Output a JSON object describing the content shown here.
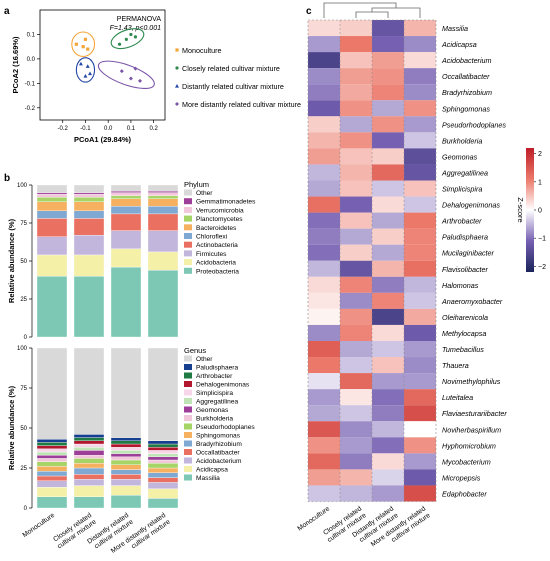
{
  "panel_labels": [
    "a",
    "b",
    "c"
  ],
  "chart_data": [
    {
      "panel": "a",
      "type": "scatter",
      "xlabel": "PCoA1 (29.84%)",
      "ylabel": "PCoA2 (16.69%)",
      "xlim": [
        -0.3,
        0.25
      ],
      "ylim": [
        -0.25,
        0.2
      ],
      "xticks": [
        "-0.2",
        "-0.1",
        "0.0",
        "0.1",
        "0.2"
      ],
      "yticks": [
        "-0.2",
        "-0.1",
        "0.0",
        "0.1"
      ],
      "annotation_title": "PERMANOVA",
      "annotation_stats": "F=1.43, p<0.001",
      "legend_position": "right",
      "series": [
        {
          "name": "Monoculture",
          "marker": "square",
          "color": "#f5a63a",
          "points": [
            [
              -0.14,
              0.06
            ],
            [
              -0.1,
              0.08
            ],
            [
              -0.11,
              0.05
            ],
            [
              -0.09,
              0.04
            ]
          ]
        },
        {
          "name": "Closely related cultivar mixture",
          "marker": "circle",
          "color": "#2e8a4f",
          "points": [
            [
              0.05,
              0.06
            ],
            [
              0.08,
              0.08
            ],
            [
              0.1,
              0.1
            ],
            [
              0.12,
              0.09
            ]
          ]
        },
        {
          "name": "Distantly related cultivar mixture",
          "marker": "triangle",
          "color": "#2446a6",
          "points": [
            [
              -0.12,
              -0.02
            ],
            [
              -0.09,
              -0.03
            ],
            [
              -0.1,
              -0.07
            ],
            [
              -0.08,
              -0.06
            ]
          ]
        },
        {
          "name": "More distantly related cultivar mixture",
          "marker": "diamond",
          "color": "#7a56a8",
          "points": [
            [
              0.06,
              -0.05
            ],
            [
              0.1,
              -0.08
            ],
            [
              0.14,
              -0.09
            ],
            [
              0.12,
              -0.04
            ]
          ]
        }
      ],
      "ellipses": [
        {
          "series": "Monoculture",
          "cx": -0.11,
          "cy": 0.06,
          "rx": 0.05,
          "ry": 0.05,
          "angle": 0
        },
        {
          "series": "Closely related cultivar mixture",
          "cx": 0.085,
          "cy": 0.083,
          "rx": 0.075,
          "ry": 0.035,
          "angle": 20
        },
        {
          "series": "Distantly related cultivar mixture",
          "cx": -0.1,
          "cy": -0.045,
          "rx": 0.04,
          "ry": 0.05,
          "angle": 0
        },
        {
          "series": "More distantly related cultivar mixture",
          "cx": 0.08,
          "cy": -0.065,
          "rx": 0.13,
          "ry": 0.04,
          "angle": -20
        }
      ]
    },
    {
      "panel": "b-phylum",
      "type": "bar",
      "stacked": true,
      "ylabel": "Relative abundance (%)",
      "ylim": [
        0,
        100
      ],
      "yticks": [
        "0",
        "25",
        "50",
        "75",
        "100"
      ],
      "legend_title": "Phylum",
      "categories": [
        "Monoculture",
        "Closely related\ncultivar mixture",
        "Distantly related\ncultivar mixture",
        "More distantly related\ncultivar mixture"
      ],
      "series": [
        {
          "name": "Proteobacteria",
          "color": "#7dc8b4",
          "values": [
            40,
            40,
            46,
            44
          ]
        },
        {
          "name": "Acidobacteria",
          "color": "#f5f0a8",
          "values": [
            14,
            14,
            12,
            12
          ]
        },
        {
          "name": "Firmicutes",
          "color": "#c2b6dc",
          "values": [
            12,
            13,
            12,
            14
          ]
        },
        {
          "name": "Actinobacteria",
          "color": "#ea7062",
          "values": [
            12,
            11,
            11,
            11
          ]
        },
        {
          "name": "Chloroflexi",
          "color": "#7fa8d2",
          "values": [
            5,
            5,
            5,
            5
          ]
        },
        {
          "name": "Bacteroidetes",
          "color": "#f6b160",
          "values": [
            6,
            6,
            5,
            5
          ]
        },
        {
          "name": "Planctomycetes",
          "color": "#a6d467",
          "values": [
            3,
            3,
            2,
            2
          ]
        },
        {
          "name": "Verrucomicrobia",
          "color": "#f2c7dc",
          "values": [
            2,
            2,
            2,
            2
          ]
        },
        {
          "name": "Gemmatimonadetes",
          "color": "#9d3f98",
          "values": [
            1,
            1,
            1,
            1
          ]
        },
        {
          "name": "Other",
          "color": "#d9d9d9",
          "values": [
            5,
            5,
            4,
            4
          ]
        }
      ]
    },
    {
      "panel": "b-genus",
      "type": "bar",
      "stacked": true,
      "ylabel": "Relative abundance (%)",
      "ylim": [
        0,
        100
      ],
      "yticks": [
        "0",
        "25",
        "50",
        "75",
        "100"
      ],
      "legend_title": "Genus",
      "categories": [
        "Monoculture",
        "Closely related\ncultivar mixture",
        "Distantly related\ncultivar mixture",
        "More distantly related\ncultivar mixture"
      ],
      "series": [
        {
          "name": "Massilia",
          "color": "#7dc8b4",
          "values": [
            7,
            7,
            8,
            6
          ]
        },
        {
          "name": "Acidicapsa",
          "color": "#f5f0a8",
          "values": [
            6,
            7,
            6,
            6
          ]
        },
        {
          "name": "Acidobacterium",
          "color": "#c2b6dc",
          "values": [
            4,
            4,
            4,
            4
          ]
        },
        {
          "name": "Occallatibacter",
          "color": "#ea7062",
          "values": [
            3,
            3,
            3,
            3
          ]
        },
        {
          "name": "Bradyrhizobium",
          "color": "#7fa8d2",
          "values": [
            3,
            4,
            3,
            3
          ]
        },
        {
          "name": "Sphingomonas",
          "color": "#f6b160",
          "values": [
            3,
            3,
            3,
            3
          ]
        },
        {
          "name": "Pseudorhodoplanes",
          "color": "#a6d467",
          "values": [
            3,
            3,
            3,
            3
          ]
        },
        {
          "name": "Burkholderia",
          "color": "#f2c7dc",
          "values": [
            2,
            2,
            2,
            2
          ]
        },
        {
          "name": "Geomonas",
          "color": "#9d3f98",
          "values": [
            2,
            3,
            2,
            2
          ]
        },
        {
          "name": "Aggregatilinea",
          "color": "#bfe5b6",
          "values": [
            2,
            2,
            2,
            2
          ]
        },
        {
          "name": "Simplicispira",
          "color": "#f8d6ea",
          "values": [
            2,
            2,
            2,
            2
          ]
        },
        {
          "name": "Dehalogenimonas",
          "color": "#b3162f",
          "values": [
            2,
            2,
            2,
            2
          ]
        },
        {
          "name": "Arthrobacter",
          "color": "#1f7a43",
          "values": [
            2,
            2,
            2,
            2
          ]
        },
        {
          "name": "Paludisphaera",
          "color": "#163f8f",
          "values": [
            2,
            2,
            2,
            2
          ]
        },
        {
          "name": "Other",
          "color": "#d9d9d9",
          "values": [
            57,
            54,
            56,
            58
          ]
        }
      ]
    },
    {
      "panel": "c",
      "type": "heatmap",
      "colorbar_label": "Z-score",
      "colorbar_ticks": [
        "-2",
        "-1",
        "0",
        "1",
        "2"
      ],
      "zlim": [
        -2.2,
        2.2
      ],
      "columns": [
        "Monoculture",
        "Closely related\ncultivar mixture",
        "Distantly related\ncultivar mixture",
        "More distantly related\ncultivar mixture"
      ],
      "rows": [
        "Massilia",
        "Acidicapsa",
        "Acidobacterium",
        "Occallatibacter",
        "Bradyrhizobium",
        "Sphingomonas",
        "Pseudorhodoplanes",
        "Burkholderia",
        "Geomonas",
        "Aggregatilinea",
        "Simplicispira",
        "Dehalogenimonas",
        "Arthrobacter",
        "Paludisphaera",
        "Mucilaginibacter",
        "Flavisolibacter",
        "Halomonas",
        "Anaeromyxobacter",
        "Oleiharenicola",
        "Methylocapsa",
        "Tumebacillus",
        "Thauera",
        "Novimethylophilus",
        "Luteitalea",
        "Flaviaesturariibacter",
        "Noviherbaspirillum",
        "Hyphomicrobium",
        "Mycobacterium",
        "Micropepsis",
        "Edaphobacter"
      ],
      "values": [
        [
          0.3,
          0.4,
          -1.3,
          0.6
        ],
        [
          -0.7,
          1.1,
          -1.1,
          -0.8
        ],
        [
          -1.6,
          0.5,
          0.8,
          0.3
        ],
        [
          -0.8,
          0.8,
          0.9,
          -0.9
        ],
        [
          -0.9,
          0.7,
          1.0,
          -0.8
        ],
        [
          -1.2,
          0.9,
          -0.6,
          0.9
        ],
        [
          0.4,
          -0.6,
          0.9,
          -0.7
        ],
        [
          0.6,
          0.9,
          -1.1,
          -0.4
        ],
        [
          0.8,
          0.5,
          0.4,
          -1.4
        ],
        [
          -0.5,
          0.6,
          1.3,
          -1.3
        ],
        [
          -0.6,
          0.5,
          -0.4,
          0.5
        ],
        [
          1.2,
          -1.1,
          0.3,
          -0.4
        ],
        [
          -1.0,
          0.5,
          -0.6,
          1.1
        ],
        [
          -0.9,
          -0.6,
          0.4,
          1.0
        ],
        [
          -1.0,
          0.4,
          -0.6,
          1.0
        ],
        [
          -0.5,
          -1.3,
          0.6,
          1.2
        ],
        [
          0.3,
          1.0,
          -0.9,
          -0.5
        ],
        [
          0.2,
          -0.8,
          1.0,
          -0.4
        ],
        [
          0.1,
          0.9,
          -1.6,
          0.7
        ],
        [
          -0.8,
          1.0,
          0.3,
          -1.2
        ],
        [
          1.4,
          -0.6,
          -0.4,
          -0.7
        ],
        [
          1.1,
          -0.4,
          0.5,
          -0.8
        ],
        [
          -0.2,
          1.3,
          -0.7,
          -0.7
        ],
        [
          -0.7,
          0.2,
          -1.0,
          1.3
        ],
        [
          -0.6,
          -0.4,
          -0.9,
          1.6
        ],
        [
          1.5,
          -0.8,
          -0.5,
          0.0
        ],
        [
          0.9,
          -0.7,
          -1.0,
          0.9
        ],
        [
          1.3,
          -0.9,
          0.3,
          -0.7
        ],
        [
          0.8,
          0.6,
          -0.3,
          -1.2
        ],
        [
          -0.4,
          -0.5,
          -0.7,
          1.6
        ]
      ]
    }
  ]
}
